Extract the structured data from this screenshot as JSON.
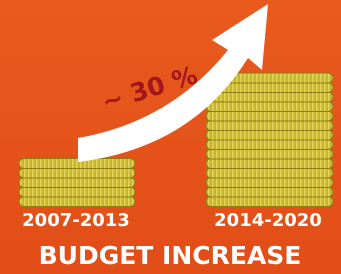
{
  "arrow_label": "~ 30 %",
  "periods": [
    "2007-2013",
    "2014-2020"
  ],
  "title": "BUDGET INCREASE"
}
